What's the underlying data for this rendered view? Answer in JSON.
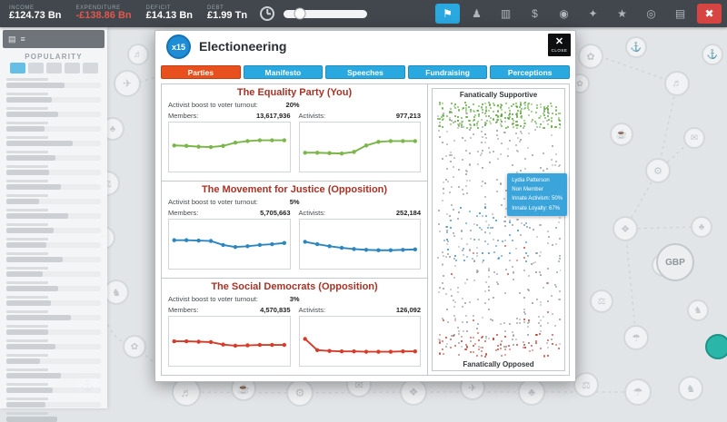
{
  "top_bar": {
    "stats": [
      {
        "label": "INCOME",
        "value": "£124.73 Bn",
        "tone": "normal"
      },
      {
        "label": "EXPENDITURE",
        "value": "-£138.86 Bn",
        "tone": "negative"
      },
      {
        "label": "DEFICIT",
        "value": "£14.13 Bn",
        "tone": "normal"
      },
      {
        "label": "DEBT",
        "value": "£1.99 Tn",
        "tone": "normal"
      }
    ],
    "icons": [
      {
        "name": "election-flag",
        "style": "active"
      },
      {
        "name": "voters",
        "style": "normal"
      },
      {
        "name": "polls-chart",
        "style": "normal"
      },
      {
        "name": "finance-dollar",
        "style": "normal"
      },
      {
        "name": "policies-pin",
        "style": "normal"
      },
      {
        "name": "achievements-medal",
        "style": "normal"
      },
      {
        "name": "favourites-star",
        "style": "normal"
      },
      {
        "name": "situations-globe",
        "style": "normal"
      },
      {
        "name": "briefing-case",
        "style": "normal"
      },
      {
        "name": "quit-power",
        "style": "danger"
      }
    ]
  },
  "sidebar": {
    "title": "POPULARITY",
    "bars": [
      62,
      48,
      55,
      40,
      70,
      52,
      45,
      58,
      35,
      65,
      50,
      42,
      60,
      38,
      55,
      47,
      68,
      44,
      52,
      36,
      58,
      49,
      41,
      54
    ]
  },
  "dialog": {
    "badge": "x15",
    "title": "Electioneering",
    "close_label": "CLOSE",
    "tabs": [
      {
        "label": "Parties",
        "active": true
      },
      {
        "label": "Manifesto",
        "active": false
      },
      {
        "label": "Speeches",
        "active": false
      },
      {
        "label": "Fundraising",
        "active": false
      },
      {
        "label": "Perceptions",
        "active": false
      }
    ],
    "boost_label": "Activist boost to voter turnout:",
    "members_label": "Members:",
    "activists_label": "Activists:",
    "parties": [
      {
        "name": "The Equality Party (You)",
        "boost": "20%",
        "members": "13,617,936",
        "activists": "977,213",
        "color": "#7ab648"
      },
      {
        "name": "The Movement for Justice (Opposition)",
        "boost": "5%",
        "members": "5,705,663",
        "activists": "252,184",
        "color": "#2e86c1"
      },
      {
        "name": "The Social Democrats (Opposition)",
        "boost": "3%",
        "members": "4,570,835",
        "activists": "126,092",
        "color": "#d63c2a"
      }
    ],
    "scatter": {
      "top_label": "Fanatically Supportive",
      "bottom_label": "Fanatically Opposed",
      "bands": [
        {
          "name": "fanatic-supporters",
          "color": "#55a630",
          "count": 260,
          "y": [
            0.0,
            0.1
          ],
          "x": [
            0,
            1
          ]
        },
        {
          "name": "neutral-voters",
          "color": "#90979c",
          "count": 430,
          "y": [
            0.03,
            0.96
          ],
          "x": [
            0,
            1
          ]
        },
        {
          "name": "party-members",
          "color": "#2e86c1",
          "count": 48,
          "y": [
            0.4,
            0.62
          ],
          "x": [
            0.05,
            0.75
          ]
        },
        {
          "name": "fanatic-opposed",
          "color": "#c0392b",
          "count": 80,
          "y": [
            0.9,
            0.995
          ],
          "x": [
            0,
            1
          ]
        },
        {
          "name": "opposed-stray",
          "color": "#c0392b",
          "count": 14,
          "y": [
            0.55,
            0.88
          ],
          "x": [
            0,
            1
          ]
        }
      ],
      "tooltip": [
        "Lydia Patterson",
        "Non Member",
        "Innate Activism: 50%",
        "Innate Loyalty: 67%"
      ]
    }
  },
  "background": {
    "gbp_label": "GBP"
  },
  "chart_data": [
    {
      "party": "The Equality Party (You)",
      "metric": "Members",
      "type": "line",
      "color": "#7ab648",
      "values": [
        56,
        55,
        53,
        52,
        55,
        63,
        67,
        69,
        69,
        69
      ],
      "ylim": [
        0,
        100
      ]
    },
    {
      "party": "The Equality Party (You)",
      "metric": "Activists",
      "type": "line",
      "color": "#7ab648",
      "values": [
        38,
        38,
        37,
        36,
        40,
        56,
        65,
        67,
        67,
        67
      ],
      "ylim": [
        0,
        100
      ]
    },
    {
      "party": "The Movement for Justice (Opposition)",
      "metric": "Members",
      "type": "line",
      "color": "#2e86c1",
      "values": [
        62,
        62,
        61,
        60,
        50,
        45,
        47,
        50,
        52,
        55
      ],
      "ylim": [
        0,
        100
      ]
    },
    {
      "party": "The Movement for Justice (Opposition)",
      "metric": "Activists",
      "type": "line",
      "color": "#2e86c1",
      "values": [
        58,
        52,
        47,
        43,
        40,
        38,
        37,
        37,
        38,
        39
      ],
      "ylim": [
        0,
        100
      ]
    },
    {
      "party": "The Social Democrats (Opposition)",
      "metric": "Members",
      "type": "line",
      "color": "#d63c2a",
      "values": [
        52,
        52,
        51,
        50,
        44,
        41,
        42,
        43,
        43,
        43
      ],
      "ylim": [
        0,
        100
      ]
    },
    {
      "party": "The Social Democrats (Opposition)",
      "metric": "Activists",
      "type": "line",
      "color": "#d63c2a",
      "values": [
        58,
        30,
        28,
        27,
        27,
        26,
        26,
        26,
        27,
        27
      ],
      "ylim": [
        0,
        100
      ]
    }
  ]
}
